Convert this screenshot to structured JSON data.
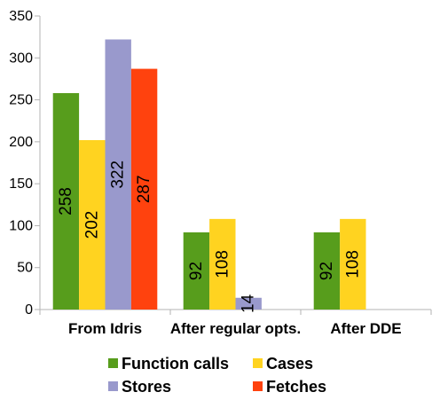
{
  "chart_data": {
    "type": "bar",
    "categories": [
      "From Idris",
      "After regular opts.",
      "After DDE"
    ],
    "series": [
      {
        "name": "Function calls",
        "color": "#579d1c",
        "values": [
          258,
          92,
          92
        ]
      },
      {
        "name": "Cases",
        "color": "#ffd320",
        "values": [
          202,
          108,
          108
        ]
      },
      {
        "name": "Stores",
        "color": "#9999cc",
        "values": [
          322,
          14,
          null
        ]
      },
      {
        "name": "Fetches",
        "color": "#ff420e",
        "values": [
          287,
          null,
          null
        ]
      }
    ],
    "ylim": [
      0,
      350
    ],
    "yticks": [
      0,
      50,
      100,
      150,
      200,
      250,
      300,
      350
    ],
    "title": "",
    "xlabel": "",
    "ylabel": "",
    "grid": false,
    "legend_position": "bottom",
    "data_labels": "inside-vertical"
  }
}
